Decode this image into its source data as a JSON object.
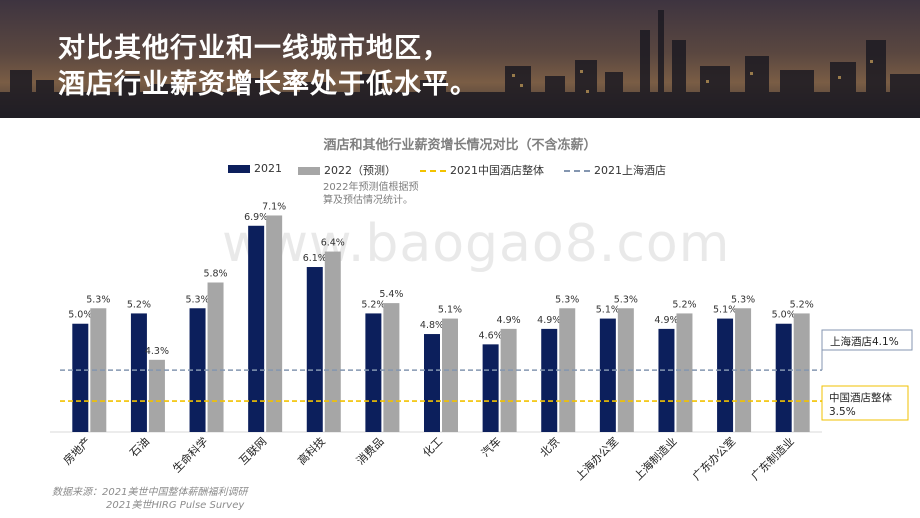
{
  "header": {
    "headline_line1": "对比其他行业和一线城市地区，",
    "headline_line2": "酒店行业薪资增长率处于低水平。"
  },
  "watermark": "www.baogao8.com",
  "legend": {
    "items": [
      {
        "label": "2021",
        "kind": "bar",
        "color": "#0c1f5c"
      },
      {
        "label": "2022（预测）",
        "kind": "bar",
        "color": "#a6a6a6"
      },
      {
        "label": "2021中国酒店整体",
        "kind": "line",
        "color": "#f2c200"
      },
      {
        "label": "2021上海酒店",
        "kind": "line",
        "color": "#8496b0"
      }
    ]
  },
  "note": {
    "line1": "2022年预测值根据预",
    "line2": "算及预估情况统计。"
  },
  "source": {
    "line1": "数据来源：2021美世中国整体薪酬福利调研",
    "line2": "2021美世HIRG Pulse Survey"
  },
  "chart_data": {
    "type": "bar",
    "title": "酒店和其他行业薪资增长情况对比（不含冻薪）",
    "categories": [
      "房地产",
      "石油",
      "生命科学",
      "互联网",
      "高科技",
      "消费品",
      "化工",
      "汽车",
      "北京",
      "上海办公室",
      "上海制造业",
      "广东办公室",
      "广东制造业"
    ],
    "series": [
      {
        "name": "2021",
        "color": "#0c1f5c",
        "values": [
          5.0,
          5.2,
          5.3,
          6.9,
          6.1,
          5.2,
          4.8,
          4.6,
          4.9,
          5.1,
          4.9,
          5.1,
          5.0
        ]
      },
      {
        "name": "2022（预测）",
        "color": "#a6a6a6",
        "values": [
          5.3,
          4.3,
          5.8,
          7.1,
          6.4,
          5.4,
          5.1,
          4.9,
          5.3,
          5.3,
          5.2,
          5.3,
          5.2
        ]
      }
    ],
    "reference_lines": [
      {
        "name": "2021上海酒店",
        "value": 4.1,
        "color": "#8496b0",
        "label": "上海酒店4.1%"
      },
      {
        "name": "2021中国酒店整体",
        "value": 3.5,
        "color": "#f2c200",
        "label_line1": "中国酒店整体",
        "label_line2": "3.5%"
      }
    ],
    "value_suffix": "%",
    "ylim": [
      2.9,
      7.4
    ],
    "grid": false,
    "legend_position": "top"
  }
}
